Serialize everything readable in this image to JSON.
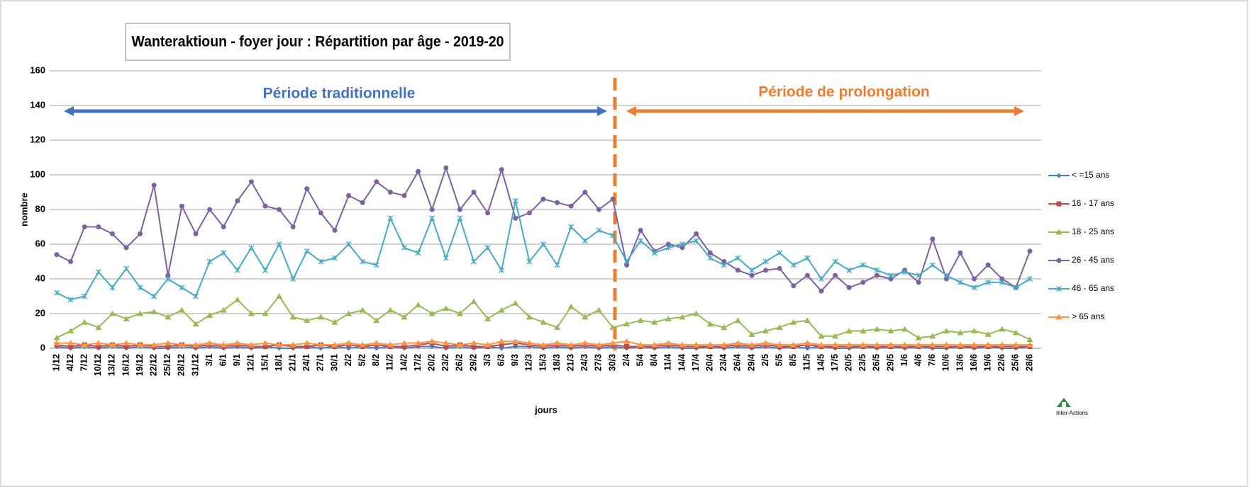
{
  "chart_data": {
    "type": "line",
    "title": "Wanteraktioun - foyer jour : Répartition par âge - 2019-20",
    "x_label": "jours",
    "y_label": "nombre",
    "annotations": [
      "Période traditionnelle",
      "Période de prolongation"
    ],
    "logo": "Inter-Actions",
    "categories": [
      "1/12",
      "4/12",
      "7/12",
      "10/12",
      "13/12",
      "16/12",
      "19/12",
      "22/12",
      "25/12",
      "28/12",
      "31/12",
      "3/1",
      "6/1",
      "9/1",
      "12/1",
      "15/1",
      "18/1",
      "21/1",
      "24/1",
      "27/1",
      "30/1",
      "2/2",
      "5/2",
      "8/2",
      "11/2",
      "14/2",
      "17/2",
      "20/2",
      "23/2",
      "26/2",
      "29/2",
      "3/3",
      "6/3",
      "9/3",
      "12/3",
      "15/3",
      "18/3",
      "21/3",
      "24/3",
      "27/3",
      "30/3",
      "2/4",
      "5/4",
      "8/4",
      "11/4",
      "14/4",
      "17/4",
      "20/4",
      "23/4",
      "26/4",
      "29/4",
      "2/5",
      "5/5",
      "8/5",
      "11/5",
      "14/5",
      "17/5",
      "20/5",
      "23/5",
      "26/5",
      "29/5",
      "1/6",
      "4/6",
      "7/6",
      "10/6",
      "13/6",
      "16/6",
      "19/6",
      "22/6",
      "25/6",
      "28/6"
    ],
    "series": [
      {
        "name": "< =15 ans",
        "color": "#4a7ebb",
        "marker": "diamond",
        "values": [
          1,
          0,
          1,
          0,
          1,
          0,
          1,
          0,
          0,
          1,
          0,
          1,
          0,
          1,
          0,
          1,
          0,
          0,
          1,
          0,
          1,
          0,
          1,
          0,
          1,
          0,
          1,
          1,
          0,
          1,
          0,
          1,
          0,
          1,
          1,
          0,
          1,
          0,
          1,
          0,
          1,
          0,
          1,
          0,
          1,
          0,
          0,
          1,
          0,
          1,
          0,
          1,
          0,
          1,
          0,
          1,
          0,
          0,
          1,
          0,
          1,
          0,
          1,
          0,
          0,
          1,
          0,
          1,
          0,
          0,
          1
        ]
      },
      {
        "name": "16 - 17 ans",
        "color": "#be4b48",
        "marker": "square",
        "values": [
          2,
          1,
          2,
          1,
          2,
          1,
          2,
          1,
          1,
          2,
          1,
          2,
          1,
          2,
          1,
          1,
          2,
          1,
          1,
          2,
          1,
          2,
          1,
          2,
          1,
          1,
          2,
          3,
          1,
          2,
          1,
          1,
          2,
          3,
          2,
          1,
          2,
          1,
          2,
          1,
          2,
          1,
          1,
          1,
          2,
          1,
          1,
          1,
          1,
          2,
          1,
          2,
          1,
          1,
          2,
          1,
          1,
          1,
          1,
          1,
          1,
          1,
          1,
          1,
          1,
          1,
          1,
          1,
          1,
          1,
          1
        ]
      },
      {
        "name": "18 - 25 ans",
        "color": "#98b954",
        "marker": "triangle",
        "values": [
          6,
          10,
          15,
          12,
          20,
          17,
          20,
          21,
          18,
          22,
          14,
          19,
          22,
          28,
          20,
          20,
          30,
          18,
          16,
          18,
          15,
          20,
          22,
          16,
          22,
          18,
          25,
          20,
          23,
          20,
          27,
          17,
          22,
          26,
          18,
          15,
          12,
          24,
          18,
          22,
          12,
          14,
          16,
          15,
          17,
          18,
          20,
          14,
          12,
          16,
          8,
          10,
          12,
          15,
          16,
          7,
          7,
          10,
          10,
          11,
          10,
          11,
          6,
          7,
          10,
          9,
          10,
          8,
          11,
          9,
          5
        ]
      },
      {
        "name": "26 - 45 ans",
        "color": "#7d60a0",
        "marker": "circle",
        "values": [
          54,
          50,
          70,
          70,
          66,
          58,
          66,
          94,
          42,
          82,
          66,
          80,
          70,
          85,
          96,
          82,
          80,
          70,
          92,
          78,
          68,
          88,
          84,
          96,
          90,
          88,
          102,
          80,
          104,
          80,
          90,
          78,
          103,
          75,
          78,
          86,
          84,
          82,
          90,
          80,
          86,
          48,
          68,
          56,
          60,
          58,
          66,
          55,
          50,
          45,
          42,
          45,
          46,
          36,
          42,
          33,
          42,
          35,
          38,
          42,
          40,
          45,
          38,
          63,
          40,
          55,
          40,
          48,
          40,
          35,
          56
        ]
      },
      {
        "name": "46 - 65 ans",
        "color": "#46aac5",
        "marker": "x",
        "values": [
          32,
          28,
          30,
          44,
          35,
          46,
          35,
          30,
          40,
          35,
          30,
          50,
          55,
          45,
          58,
          45,
          60,
          40,
          56,
          50,
          52,
          60,
          50,
          48,
          75,
          58,
          55,
          75,
          52,
          75,
          50,
          58,
          45,
          85,
          50,
          60,
          48,
          70,
          62,
          68,
          65,
          50,
          62,
          55,
          58,
          60,
          62,
          52,
          48,
          52,
          45,
          50,
          55,
          48,
          52,
          40,
          50,
          45,
          48,
          45,
          42,
          44,
          42,
          48,
          42,
          38,
          35,
          38,
          38,
          35,
          40
        ]
      },
      {
        "name": "> 65 ans",
        "color": "#f79646",
        "marker": "triangle",
        "values": [
          3,
          3,
          2,
          3,
          2,
          3,
          2,
          2,
          3,
          2,
          2,
          3,
          2,
          3,
          2,
          3,
          2,
          2,
          3,
          2,
          2,
          3,
          2,
          3,
          2,
          3,
          3,
          4,
          3,
          2,
          3,
          2,
          4,
          4,
          3,
          2,
          3,
          2,
          3,
          2,
          3,
          4,
          2,
          2,
          3,
          2,
          2,
          2,
          2,
          3,
          2,
          3,
          2,
          2,
          3,
          2,
          2,
          2,
          2,
          2,
          2,
          2,
          2,
          2,
          2,
          2,
          2,
          2,
          2,
          2,
          2
        ]
      }
    ],
    "ylim": [
      0,
      160
    ],
    "yticks": [
      0,
      20,
      40,
      60,
      80,
      100,
      120,
      140,
      160
    ],
    "grid": true
  }
}
